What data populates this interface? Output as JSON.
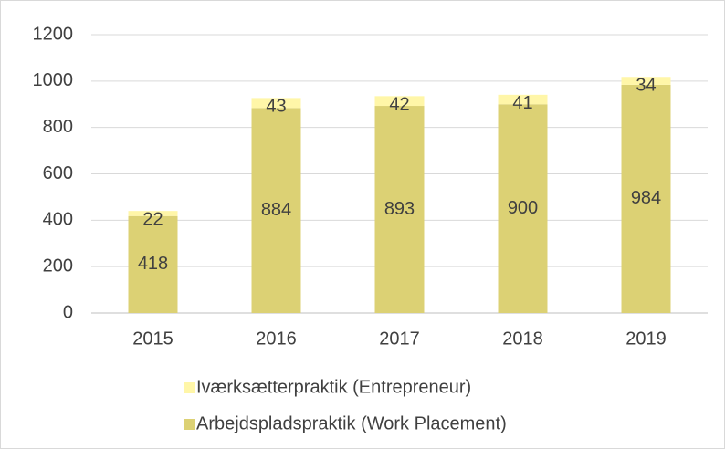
{
  "chart_data": {
    "type": "stacked_bar",
    "categories": [
      "2015",
      "2016",
      "2017",
      "2018",
      "2019"
    ],
    "series": [
      {
        "name": "Arbejdspladspraktik (Work Placement)",
        "color": "#dcd174",
        "values": [
          418,
          884,
          893,
          900,
          984
        ]
      },
      {
        "name": "Iværksætterpraktik (Entrepreneur)",
        "color": "#fff6a8",
        "values": [
          22,
          43,
          42,
          41,
          34
        ]
      }
    ],
    "ylim": [
      0,
      1200
    ],
    "yticks": [
      0,
      200,
      400,
      600,
      800,
      1000,
      1200
    ],
    "grid": true,
    "legend": "bottom"
  }
}
